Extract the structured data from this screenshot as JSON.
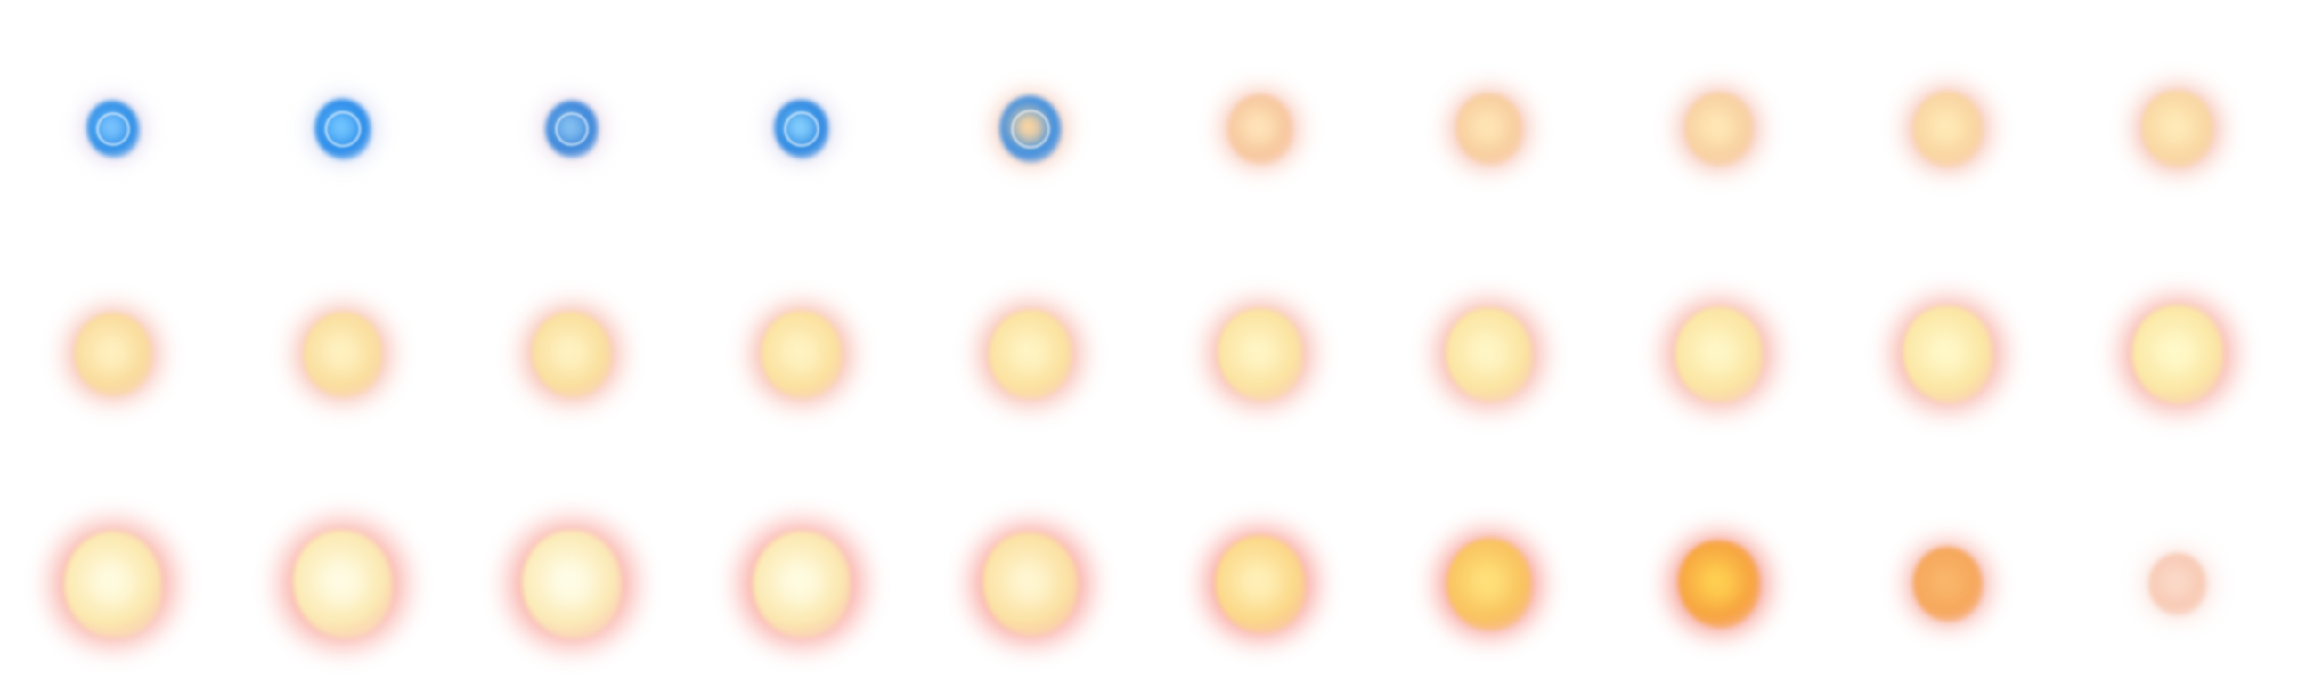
{
  "sprite_sheet": {
    "frame_count": 30,
    "columns": 10,
    "rows": 3,
    "frames": [
      {
        "phase": "blue-orb",
        "core": "#2f8fe6",
        "glow": "#b9a6d6",
        "hot": "#7cc4ff",
        "intensity": 0.2
      },
      {
        "phase": "blue-orb",
        "core": "#2a8be8",
        "glow": "#a9b6e6",
        "hot": "#73c6ff",
        "intensity": 0.24
      },
      {
        "phase": "blue-orb",
        "core": "#3b86d9",
        "glow": "#c7a7c9",
        "hot": "#87c1f2",
        "intensity": 0.2
      },
      {
        "phase": "blue-orb",
        "core": "#2e88e0",
        "glow": "#b4aedb",
        "hot": "#86d0ff",
        "intensity": 0.22
      },
      {
        "phase": "transition",
        "core": "#3f8fe0",
        "glow": "#f0b39a",
        "hot": "#ffd6a0",
        "intensity": 0.3
      },
      {
        "phase": "fire",
        "core": "#f7c9a0",
        "glow": "#f6a98e",
        "hot": "#ffe3b8",
        "intensity": 0.34
      },
      {
        "phase": "fire",
        "core": "#f8cfa0",
        "glow": "#f4a58d",
        "hot": "#ffe5b4",
        "intensity": 0.36
      },
      {
        "phase": "fire",
        "core": "#f8d2a2",
        "glow": "#f3a28a",
        "hot": "#ffe7b5",
        "intensity": 0.38
      },
      {
        "phase": "fire",
        "core": "#f9d6a2",
        "glow": "#f3a088",
        "hot": "#ffe9b6",
        "intensity": 0.4
      },
      {
        "phase": "fire",
        "core": "#f9d8a3",
        "glow": "#f29d86",
        "hot": "#ffeab8",
        "intensity": 0.42
      },
      {
        "phase": "fire",
        "core": "#fadd9e",
        "glow": "#f49a84",
        "hot": "#fff0c0",
        "intensity": 0.48
      },
      {
        "phase": "fire",
        "core": "#fadf9f",
        "glow": "#f49882",
        "hot": "#fff1c1",
        "intensity": 0.5
      },
      {
        "phase": "fire",
        "core": "#fae09f",
        "glow": "#f49580",
        "hot": "#fff2c2",
        "intensity": 0.52
      },
      {
        "phase": "fire",
        "core": "#fbe2a0",
        "glow": "#f4927e",
        "hot": "#fff3c3",
        "intensity": 0.54
      },
      {
        "phase": "fire",
        "core": "#fbe3a1",
        "glow": "#f48f7c",
        "hot": "#fff4c4",
        "intensity": 0.56
      },
      {
        "phase": "fire",
        "core": "#fbe4a2",
        "glow": "#f48c7a",
        "hot": "#fff5c5",
        "intensity": 0.58
      },
      {
        "phase": "fire",
        "core": "#fbe5a3",
        "glow": "#f48978",
        "hot": "#fff6c6",
        "intensity": 0.6
      },
      {
        "phase": "fire",
        "core": "#fbe6a4",
        "glow": "#f48676",
        "hot": "#fff7c7",
        "intensity": 0.62
      },
      {
        "phase": "fire",
        "core": "#fbe7a5",
        "glow": "#f48374",
        "hot": "#fff8c8",
        "intensity": 0.64
      },
      {
        "phase": "fire",
        "core": "#fbe8a6",
        "glow": "#f48072",
        "hot": "#fff9c9",
        "intensity": 0.66
      },
      {
        "phase": "burst",
        "core": "#fbe9b0",
        "glow": "#f57a6c",
        "hot": "#fffbe0",
        "intensity": 0.74
      },
      {
        "phase": "burst",
        "core": "#fbeab4",
        "glow": "#f6776a",
        "hot": "#fffce4",
        "intensity": 0.76
      },
      {
        "phase": "burst",
        "core": "#fbebb8",
        "glow": "#f67468",
        "hot": "#fffde8",
        "intensity": 0.76
      },
      {
        "phase": "burst",
        "core": "#fbe9b2",
        "glow": "#f67066",
        "hot": "#fffce2",
        "intensity": 0.74
      },
      {
        "phase": "burst",
        "core": "#fbe2a4",
        "glow": "#f66c62",
        "hot": "#fff6d2",
        "intensity": 0.7
      },
      {
        "phase": "fade",
        "core": "#fbd98a",
        "glow": "#f6695e",
        "hot": "#fff0b8",
        "intensity": 0.64
      },
      {
        "phase": "fade",
        "core": "#f9c460",
        "glow": "#f5675a",
        "hot": "#ffe07a",
        "intensity": 0.58
      },
      {
        "phase": "fade",
        "core": "#f7a640",
        "glow": "#f36756",
        "hot": "#ffcf50",
        "intensity": 0.54
      },
      {
        "phase": "fade",
        "core": "#f6a85c",
        "glow": "#f4897a",
        "hot": "#f9b66a",
        "intensity": 0.4
      },
      {
        "phase": "fade",
        "core": "#f8cbb6",
        "glow": "#f9d2c6",
        "hot": "#fbd9c8",
        "intensity": 0.26
      }
    ]
  }
}
